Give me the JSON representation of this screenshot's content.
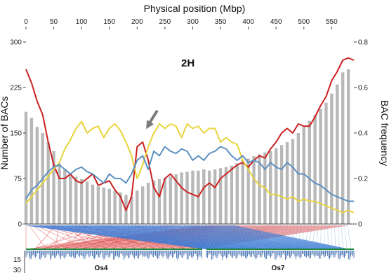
{
  "chart_data": {
    "type": "bar",
    "title": "Physical position (Mbp)",
    "panel_label": "2H",
    "xlabel": "Physical position (Mbp)",
    "ylabel_left": "Number of BACs",
    "ylabel_right": "BAC frequency",
    "xlim": [
      0,
      590
    ],
    "ylim_left": [
      0,
      300
    ],
    "ylim_right": [
      0,
      0.8
    ],
    "x_ticks": [
      "0",
      "50",
      "100",
      "150",
      "200",
      "250",
      "300",
      "350",
      "400",
      "450",
      "500",
      "550"
    ],
    "y_left_ticks": [
      "0",
      "75",
      "150",
      "225",
      "300"
    ],
    "y_right_ticks": [
      "0",
      "0.2",
      "0.4",
      "0.6",
      "0.8"
    ],
    "bar_series": {
      "name": "Number of BACs",
      "color": "#b8b8b8",
      "x": [
        0,
        10,
        20,
        30,
        40,
        50,
        60,
        70,
        80,
        90,
        100,
        110,
        120,
        130,
        140,
        150,
        160,
        170,
        180,
        190,
        200,
        210,
        220,
        230,
        240,
        250,
        260,
        270,
        280,
        290,
        300,
        310,
        320,
        330,
        340,
        350,
        360,
        370,
        380,
        390,
        400,
        410,
        420,
        430,
        440,
        450,
        460,
        470,
        480,
        490,
        500,
        510,
        520,
        530,
        540,
        550,
        560,
        570,
        580
      ],
      "values": [
        185,
        175,
        160,
        150,
        135,
        120,
        100,
        90,
        82,
        78,
        74,
        70,
        65,
        62,
        60,
        58,
        55,
        52,
        48,
        45,
        55,
        62,
        68,
        72,
        74,
        76,
        78,
        82,
        85,
        86,
        88,
        88,
        90,
        88,
        90,
        92,
        94,
        96,
        100,
        105,
        108,
        112,
        115,
        118,
        120,
        125,
        130,
        135,
        140,
        150,
        160,
        170,
        180,
        190,
        200,
        215,
        230,
        250,
        255
      ]
    },
    "series": [
      {
        "color": "#cc1f1f",
        "x": [
          0,
          10,
          20,
          30,
          40,
          50,
          60,
          70,
          80,
          90,
          100,
          110,
          120,
          130,
          140,
          150,
          160,
          170,
          180,
          190,
          200,
          210,
          220,
          230,
          240,
          250,
          260,
          270,
          280,
          290,
          300,
          310,
          320,
          330,
          340,
          350,
          360,
          370,
          380,
          390,
          400,
          410,
          420,
          430,
          440,
          450,
          460,
          470,
          480,
          490,
          500,
          510,
          520,
          530,
          540,
          550,
          560,
          570,
          580,
          590
        ],
        "values": [
          0.68,
          0.62,
          0.54,
          0.48,
          0.36,
          0.26,
          0.2,
          0.2,
          0.22,
          0.19,
          0.18,
          0.2,
          0.22,
          0.17,
          0.18,
          0.19,
          0.15,
          0.12,
          0.06,
          0.12,
          0.34,
          0.36,
          0.28,
          0.16,
          0.12,
          0.2,
          0.22,
          0.19,
          0.16,
          0.14,
          0.13,
          0.12,
          0.16,
          0.18,
          0.16,
          0.2,
          0.22,
          0.24,
          0.26,
          0.27,
          0.25,
          0.28,
          0.3,
          0.29,
          0.33,
          0.36,
          0.4,
          0.42,
          0.4,
          0.44,
          0.43,
          0.43,
          0.47,
          0.52,
          0.56,
          0.63,
          0.67,
          0.72,
          0.73,
          0.72
        ]
      },
      {
        "color": "#e8d43a",
        "x": [
          0,
          10,
          20,
          30,
          40,
          50,
          60,
          70,
          80,
          90,
          100,
          110,
          120,
          130,
          140,
          150,
          160,
          170,
          180,
          190,
          200,
          210,
          220,
          230,
          240,
          250,
          260,
          270,
          280,
          290,
          300,
          310,
          320,
          330,
          340,
          350,
          360,
          370,
          380,
          390,
          400,
          410,
          420,
          430,
          440,
          450,
          460,
          470,
          480,
          490,
          500,
          510,
          520,
          530,
          540,
          550,
          560,
          570,
          580,
          590
        ],
        "values": [
          0.09,
          0.12,
          0.15,
          0.18,
          0.21,
          0.24,
          0.27,
          0.33,
          0.37,
          0.42,
          0.45,
          0.4,
          0.42,
          0.43,
          0.38,
          0.42,
          0.44,
          0.41,
          0.36,
          0.3,
          0.2,
          0.26,
          0.34,
          0.4,
          0.44,
          0.42,
          0.44,
          0.43,
          0.38,
          0.44,
          0.42,
          0.43,
          0.4,
          0.42,
          0.42,
          0.36,
          0.38,
          0.36,
          0.35,
          0.28,
          0.24,
          0.2,
          0.17,
          0.16,
          0.13,
          0.13,
          0.12,
          0.11,
          0.12,
          0.1,
          0.11,
          0.1,
          0.1,
          0.09,
          0.08,
          0.07,
          0.06,
          0.05,
          0.06,
          0.05
        ]
      },
      {
        "color": "#5b8fbf",
        "x": [
          0,
          10,
          20,
          30,
          40,
          50,
          60,
          70,
          80,
          90,
          100,
          110,
          120,
          130,
          140,
          150,
          160,
          170,
          180,
          190,
          200,
          210,
          220,
          230,
          240,
          250,
          260,
          270,
          280,
          290,
          300,
          310,
          320,
          330,
          340,
          350,
          360,
          370,
          380,
          390,
          400,
          410,
          420,
          430,
          440,
          450,
          460,
          470,
          480,
          490,
          500,
          510,
          520,
          530,
          540,
          550,
          560,
          570,
          580,
          590
        ],
        "values": [
          0.11,
          0.15,
          0.17,
          0.2,
          0.23,
          0.25,
          0.26,
          0.24,
          0.22,
          0.24,
          0.25,
          0.23,
          0.22,
          0.2,
          0.18,
          0.22,
          0.2,
          0.2,
          0.18,
          0.22,
          0.28,
          0.3,
          0.24,
          0.32,
          0.3,
          0.34,
          0.32,
          0.31,
          0.33,
          0.32,
          0.28,
          0.3,
          0.28,
          0.31,
          0.32,
          0.34,
          0.33,
          0.3,
          0.28,
          0.3,
          0.27,
          0.28,
          0.27,
          0.24,
          0.27,
          0.25,
          0.24,
          0.27,
          0.25,
          0.22,
          0.22,
          0.2,
          0.18,
          0.17,
          0.15,
          0.13,
          0.12,
          0.11,
          0.1,
          0.1
        ]
      }
    ],
    "arrow": {
      "x": 220,
      "y_left": 160,
      "color": "#7a7a7a"
    },
    "synteny": {
      "chromosome_labels": [
        "Os4",
        "Os7"
      ],
      "left_scale_ticks": [
        "15",
        "30"
      ]
    }
  }
}
